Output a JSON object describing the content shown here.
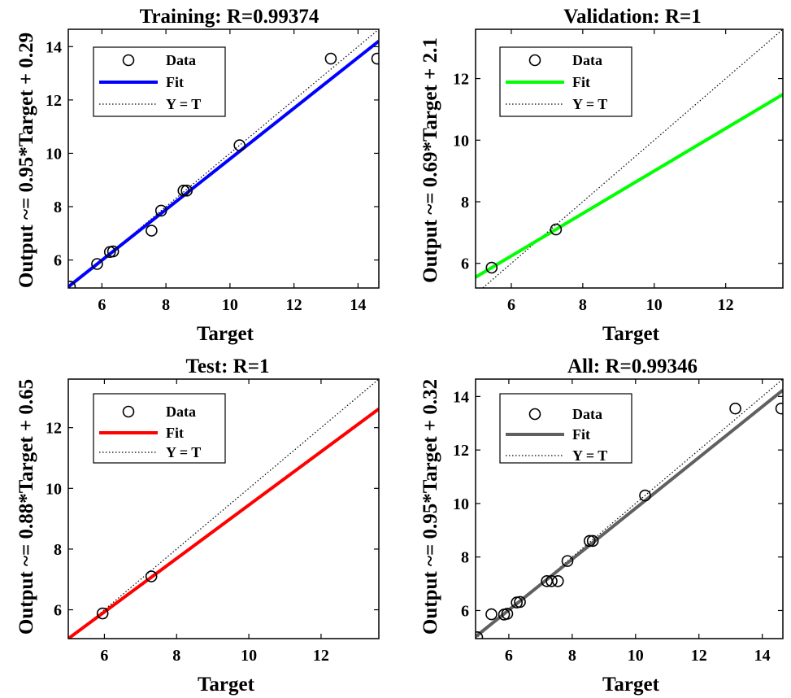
{
  "colors": {
    "training": "#0000ff",
    "validation": "#00ff00",
    "test": "#ff0000",
    "all": "#606060",
    "axis": "#000000"
  },
  "chart_data": [
    {
      "type": "scatter",
      "title": "Training: R=0.99374",
      "xlabel": "Target",
      "ylabel": "Output ~= 0.95*Target + 0.29",
      "xlim": [
        4.95,
        14.65
      ],
      "ylim": [
        4.95,
        14.65
      ],
      "xticks": [
        6,
        8,
        10,
        12,
        14
      ],
      "yticks": [
        6,
        8,
        10,
        12,
        14
      ],
      "fit": {
        "slope": 0.95,
        "intercept": 0.29,
        "color": "#0000ff"
      },
      "legend": {
        "position": "top-left",
        "entries": [
          "Data",
          "Fit",
          "Y = T"
        ]
      },
      "points": [
        {
          "x": 5.0,
          "y": 5.0
        },
        {
          "x": 5.85,
          "y": 5.85
        },
        {
          "x": 6.25,
          "y": 6.3
        },
        {
          "x": 6.35,
          "y": 6.32
        },
        {
          "x": 7.55,
          "y": 7.1
        },
        {
          "x": 7.85,
          "y": 7.85
        },
        {
          "x": 8.55,
          "y": 8.6
        },
        {
          "x": 8.65,
          "y": 8.6
        },
        {
          "x": 10.3,
          "y": 10.3
        },
        {
          "x": 13.15,
          "y": 13.55
        },
        {
          "x": 14.6,
          "y": 13.55
        }
      ]
    },
    {
      "type": "scatter",
      "title": "Validation: R=1",
      "xlabel": "Target",
      "ylabel": "Output ~= 0.69*Target + 2.1",
      "xlim": [
        5.0,
        13.6
      ],
      "ylim": [
        5.2,
        13.6
      ],
      "xticks": [
        6,
        8,
        10,
        12
      ],
      "yticks": [
        6,
        8,
        10,
        12
      ],
      "fit": {
        "slope": 0.69,
        "intercept": 2.1,
        "color": "#00ff00"
      },
      "legend": {
        "position": "top-left",
        "entries": [
          "Data",
          "Fit",
          "Y = T"
        ]
      },
      "points": [
        {
          "x": 5.45,
          "y": 5.86
        },
        {
          "x": 7.25,
          "y": 7.1
        }
      ]
    },
    {
      "type": "scatter",
      "title": "Test: R=1",
      "xlabel": "Target",
      "ylabel": "Output ~= 0.88*Target + 0.65",
      "xlim": [
        5.0,
        13.6
      ],
      "ylim": [
        5.05,
        13.6
      ],
      "xticks": [
        6,
        8,
        10,
        12
      ],
      "yticks": [
        6,
        8,
        10,
        12
      ],
      "fit": {
        "slope": 0.88,
        "intercept": 0.65,
        "color": "#ff0000"
      },
      "legend": {
        "position": "top-left",
        "entries": [
          "Data",
          "Fit",
          "Y = T"
        ]
      },
      "points": [
        {
          "x": 5.95,
          "y": 5.88
        },
        {
          "x": 7.3,
          "y": 7.1
        }
      ]
    },
    {
      "type": "scatter",
      "title": "All: R=0.99346",
      "xlabel": "Target",
      "ylabel": "Output ~= 0.95*Target + 0.32",
      "xlim": [
        4.95,
        14.65
      ],
      "ylim": [
        4.95,
        14.65
      ],
      "xticks": [
        6,
        8,
        10,
        12,
        14
      ],
      "yticks": [
        6,
        8,
        10,
        12,
        14
      ],
      "fit": {
        "slope": 0.95,
        "intercept": 0.32,
        "color": "#606060"
      },
      "legend": {
        "position": "top-left",
        "entries": [
          "Data",
          "Fit",
          "Y = T"
        ]
      },
      "points": [
        {
          "x": 5.0,
          "y": 5.0
        },
        {
          "x": 5.45,
          "y": 5.86
        },
        {
          "x": 5.85,
          "y": 5.85
        },
        {
          "x": 5.95,
          "y": 5.88
        },
        {
          "x": 6.25,
          "y": 6.3
        },
        {
          "x": 6.35,
          "y": 6.32
        },
        {
          "x": 7.2,
          "y": 7.1
        },
        {
          "x": 7.35,
          "y": 7.1
        },
        {
          "x": 7.55,
          "y": 7.1
        },
        {
          "x": 7.85,
          "y": 7.85
        },
        {
          "x": 8.55,
          "y": 8.6
        },
        {
          "x": 8.65,
          "y": 8.6
        },
        {
          "x": 10.3,
          "y": 10.3
        },
        {
          "x": 13.15,
          "y": 13.55
        },
        {
          "x": 14.6,
          "y": 13.55
        }
      ]
    }
  ]
}
